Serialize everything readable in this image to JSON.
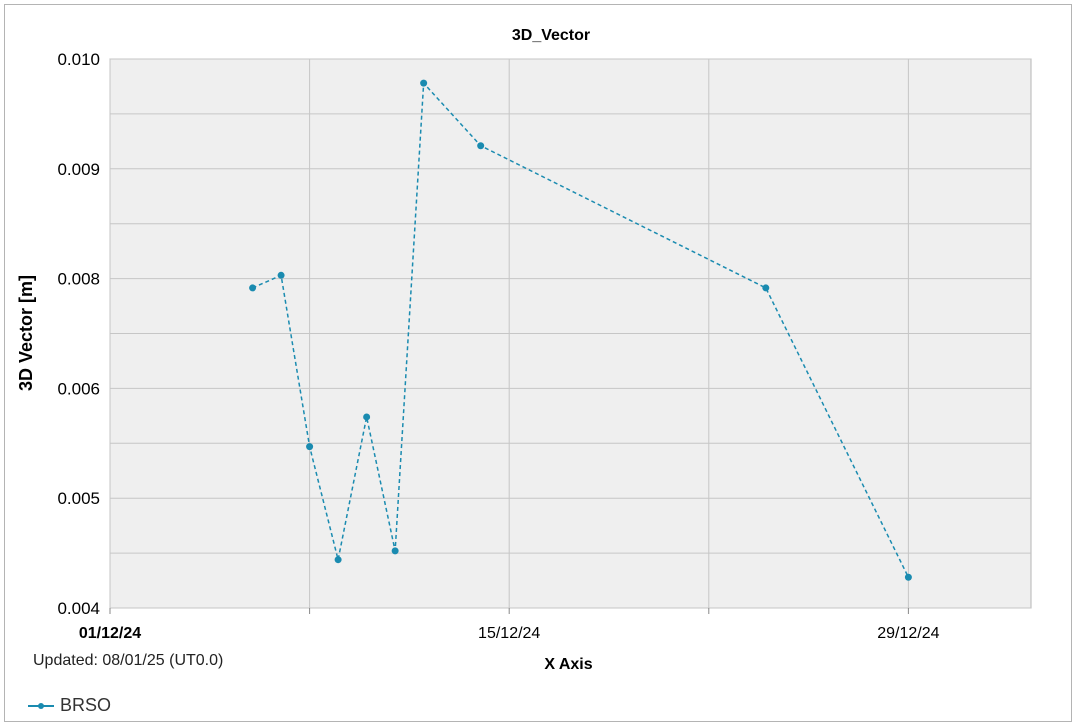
{
  "chart_data": {
    "type": "line",
    "title": "3D_Vector",
    "xlabel": "X Axis",
    "ylabel": "3D Vector [m]",
    "x_ticks": [
      "01/12/24",
      "15/12/24",
      "29/12/24"
    ],
    "y_ticks": [
      "0.004",
      "0.005",
      "0.006",
      "0.008",
      "0.009",
      "0.010"
    ],
    "series": [
      {
        "name": "BRSO",
        "color": "#1a8bb0",
        "line_style": "dashed",
        "x": [
          "06/12/24",
          "07/12/24",
          "08/12/24",
          "09/12/24",
          "10/12/24",
          "11/12/24",
          "12/12/24",
          "14/12/24",
          "24/12/24",
          "29/12/24"
        ],
        "values": [
          0.00783,
          0.00803,
          0.00547,
          0.00444,
          0.00574,
          0.00452,
          0.00978,
          0.00921,
          0.00783,
          0.00428
        ]
      }
    ],
    "legend_position": "bottom-left",
    "grid": true
  },
  "footer": {
    "updated": "Updated: 08/01/25 (UT0.0)"
  }
}
